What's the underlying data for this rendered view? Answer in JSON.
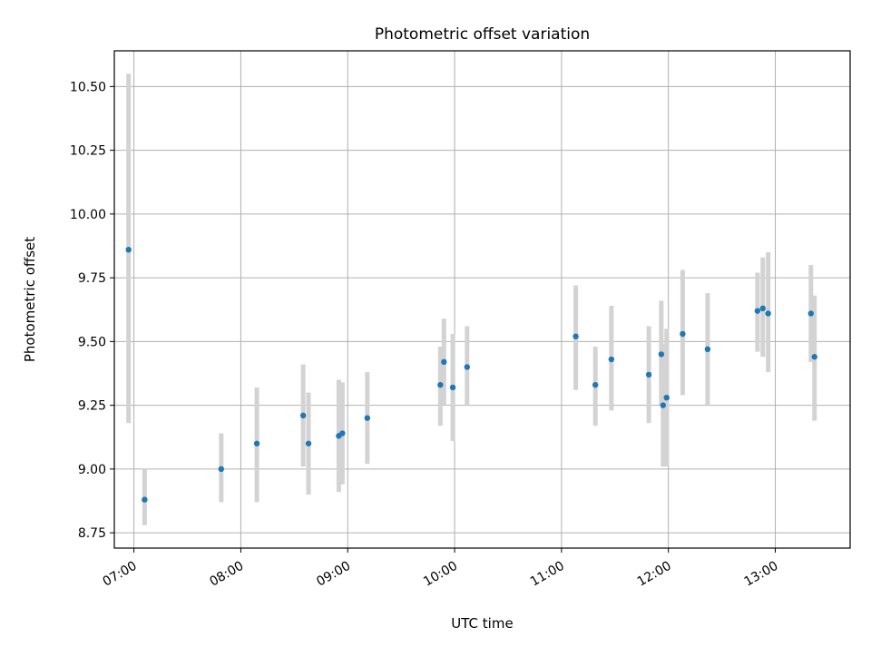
{
  "chart_data": {
    "type": "scatter",
    "title": "Photometric offset variation",
    "xlabel": "UTC time",
    "ylabel": "Photometric offset",
    "x_axis": {
      "kind": "time",
      "range": [
        "06:49",
        "13:42"
      ],
      "ticks": [
        "07:00",
        "08:00",
        "09:00",
        "10:00",
        "11:00",
        "12:00",
        "13:00"
      ]
    },
    "y_axis": {
      "range": [
        8.69,
        10.64
      ],
      "ticks": [
        8.75,
        9.0,
        9.25,
        9.5,
        9.75,
        10.0,
        10.25,
        10.5
      ],
      "tick_labels": [
        "8.75",
        "9.00",
        "9.25",
        "9.50",
        "9.75",
        "10.00",
        "10.25",
        "10.50"
      ]
    },
    "grid": true,
    "legend": "none",
    "colors": {
      "points": "#1f77b4",
      "error_bars": "#d3d3d3",
      "grid": "#b0b0b0"
    },
    "series": [
      {
        "points": [
          {
            "x": "06:57",
            "y": 9.86,
            "ylow": 9.18,
            "yhigh": 10.55
          },
          {
            "x": "07:06",
            "y": 8.88,
            "ylow": 8.78,
            "yhigh": 9.0
          },
          {
            "x": "07:49",
            "y": 9.0,
            "ylow": 8.87,
            "yhigh": 9.14
          },
          {
            "x": "08:09",
            "y": 9.1,
            "ylow": 8.87,
            "yhigh": 9.32
          },
          {
            "x": "08:35",
            "y": 9.21,
            "ylow": 9.01,
            "yhigh": 9.41
          },
          {
            "x": "08:38",
            "y": 9.1,
            "ylow": 8.9,
            "yhigh": 9.3
          },
          {
            "x": "08:55",
            "y": 9.13,
            "ylow": 8.91,
            "yhigh": 9.35
          },
          {
            "x": "08:57",
            "y": 9.14,
            "ylow": 8.94,
            "yhigh": 9.34
          },
          {
            "x": "09:11",
            "y": 9.2,
            "ylow": 9.02,
            "yhigh": 9.38
          },
          {
            "x": "09:52",
            "y": 9.33,
            "ylow": 9.17,
            "yhigh": 9.48
          },
          {
            "x": "09:54",
            "y": 9.42,
            "ylow": 9.25,
            "yhigh": 9.59
          },
          {
            "x": "09:59",
            "y": 9.32,
            "ylow": 9.11,
            "yhigh": 9.53
          },
          {
            "x": "10:07",
            "y": 9.4,
            "ylow": 9.25,
            "yhigh": 9.56
          },
          {
            "x": "11:08",
            "y": 9.52,
            "ylow": 9.31,
            "yhigh": 9.72
          },
          {
            "x": "11:19",
            "y": 9.33,
            "ylow": 9.17,
            "yhigh": 9.48
          },
          {
            "x": "11:28",
            "y": 9.43,
            "ylow": 9.23,
            "yhigh": 9.64
          },
          {
            "x": "11:49",
            "y": 9.37,
            "ylow": 9.18,
            "yhigh": 9.56
          },
          {
            "x": "11:56",
            "y": 9.45,
            "ylow": 9.25,
            "yhigh": 9.66
          },
          {
            "x": "11:57",
            "y": 9.25,
            "ylow": 9.01,
            "yhigh": 9.49
          },
          {
            "x": "11:59",
            "y": 9.28,
            "ylow": 9.01,
            "yhigh": 9.55
          },
          {
            "x": "12:08",
            "y": 9.53,
            "ylow": 9.29,
            "yhigh": 9.78
          },
          {
            "x": "12:22",
            "y": 9.47,
            "ylow": 9.25,
            "yhigh": 9.69
          },
          {
            "x": "12:50",
            "y": 9.62,
            "ylow": 9.46,
            "yhigh": 9.77
          },
          {
            "x": "12:53",
            "y": 9.63,
            "ylow": 9.44,
            "yhigh": 9.83
          },
          {
            "x": "12:56",
            "y": 9.61,
            "ylow": 9.38,
            "yhigh": 9.85
          },
          {
            "x": "13:20",
            "y": 9.61,
            "ylow": 9.42,
            "yhigh": 9.8
          },
          {
            "x": "13:22",
            "y": 9.44,
            "ylow": 9.19,
            "yhigh": 9.68
          }
        ]
      }
    ]
  }
}
